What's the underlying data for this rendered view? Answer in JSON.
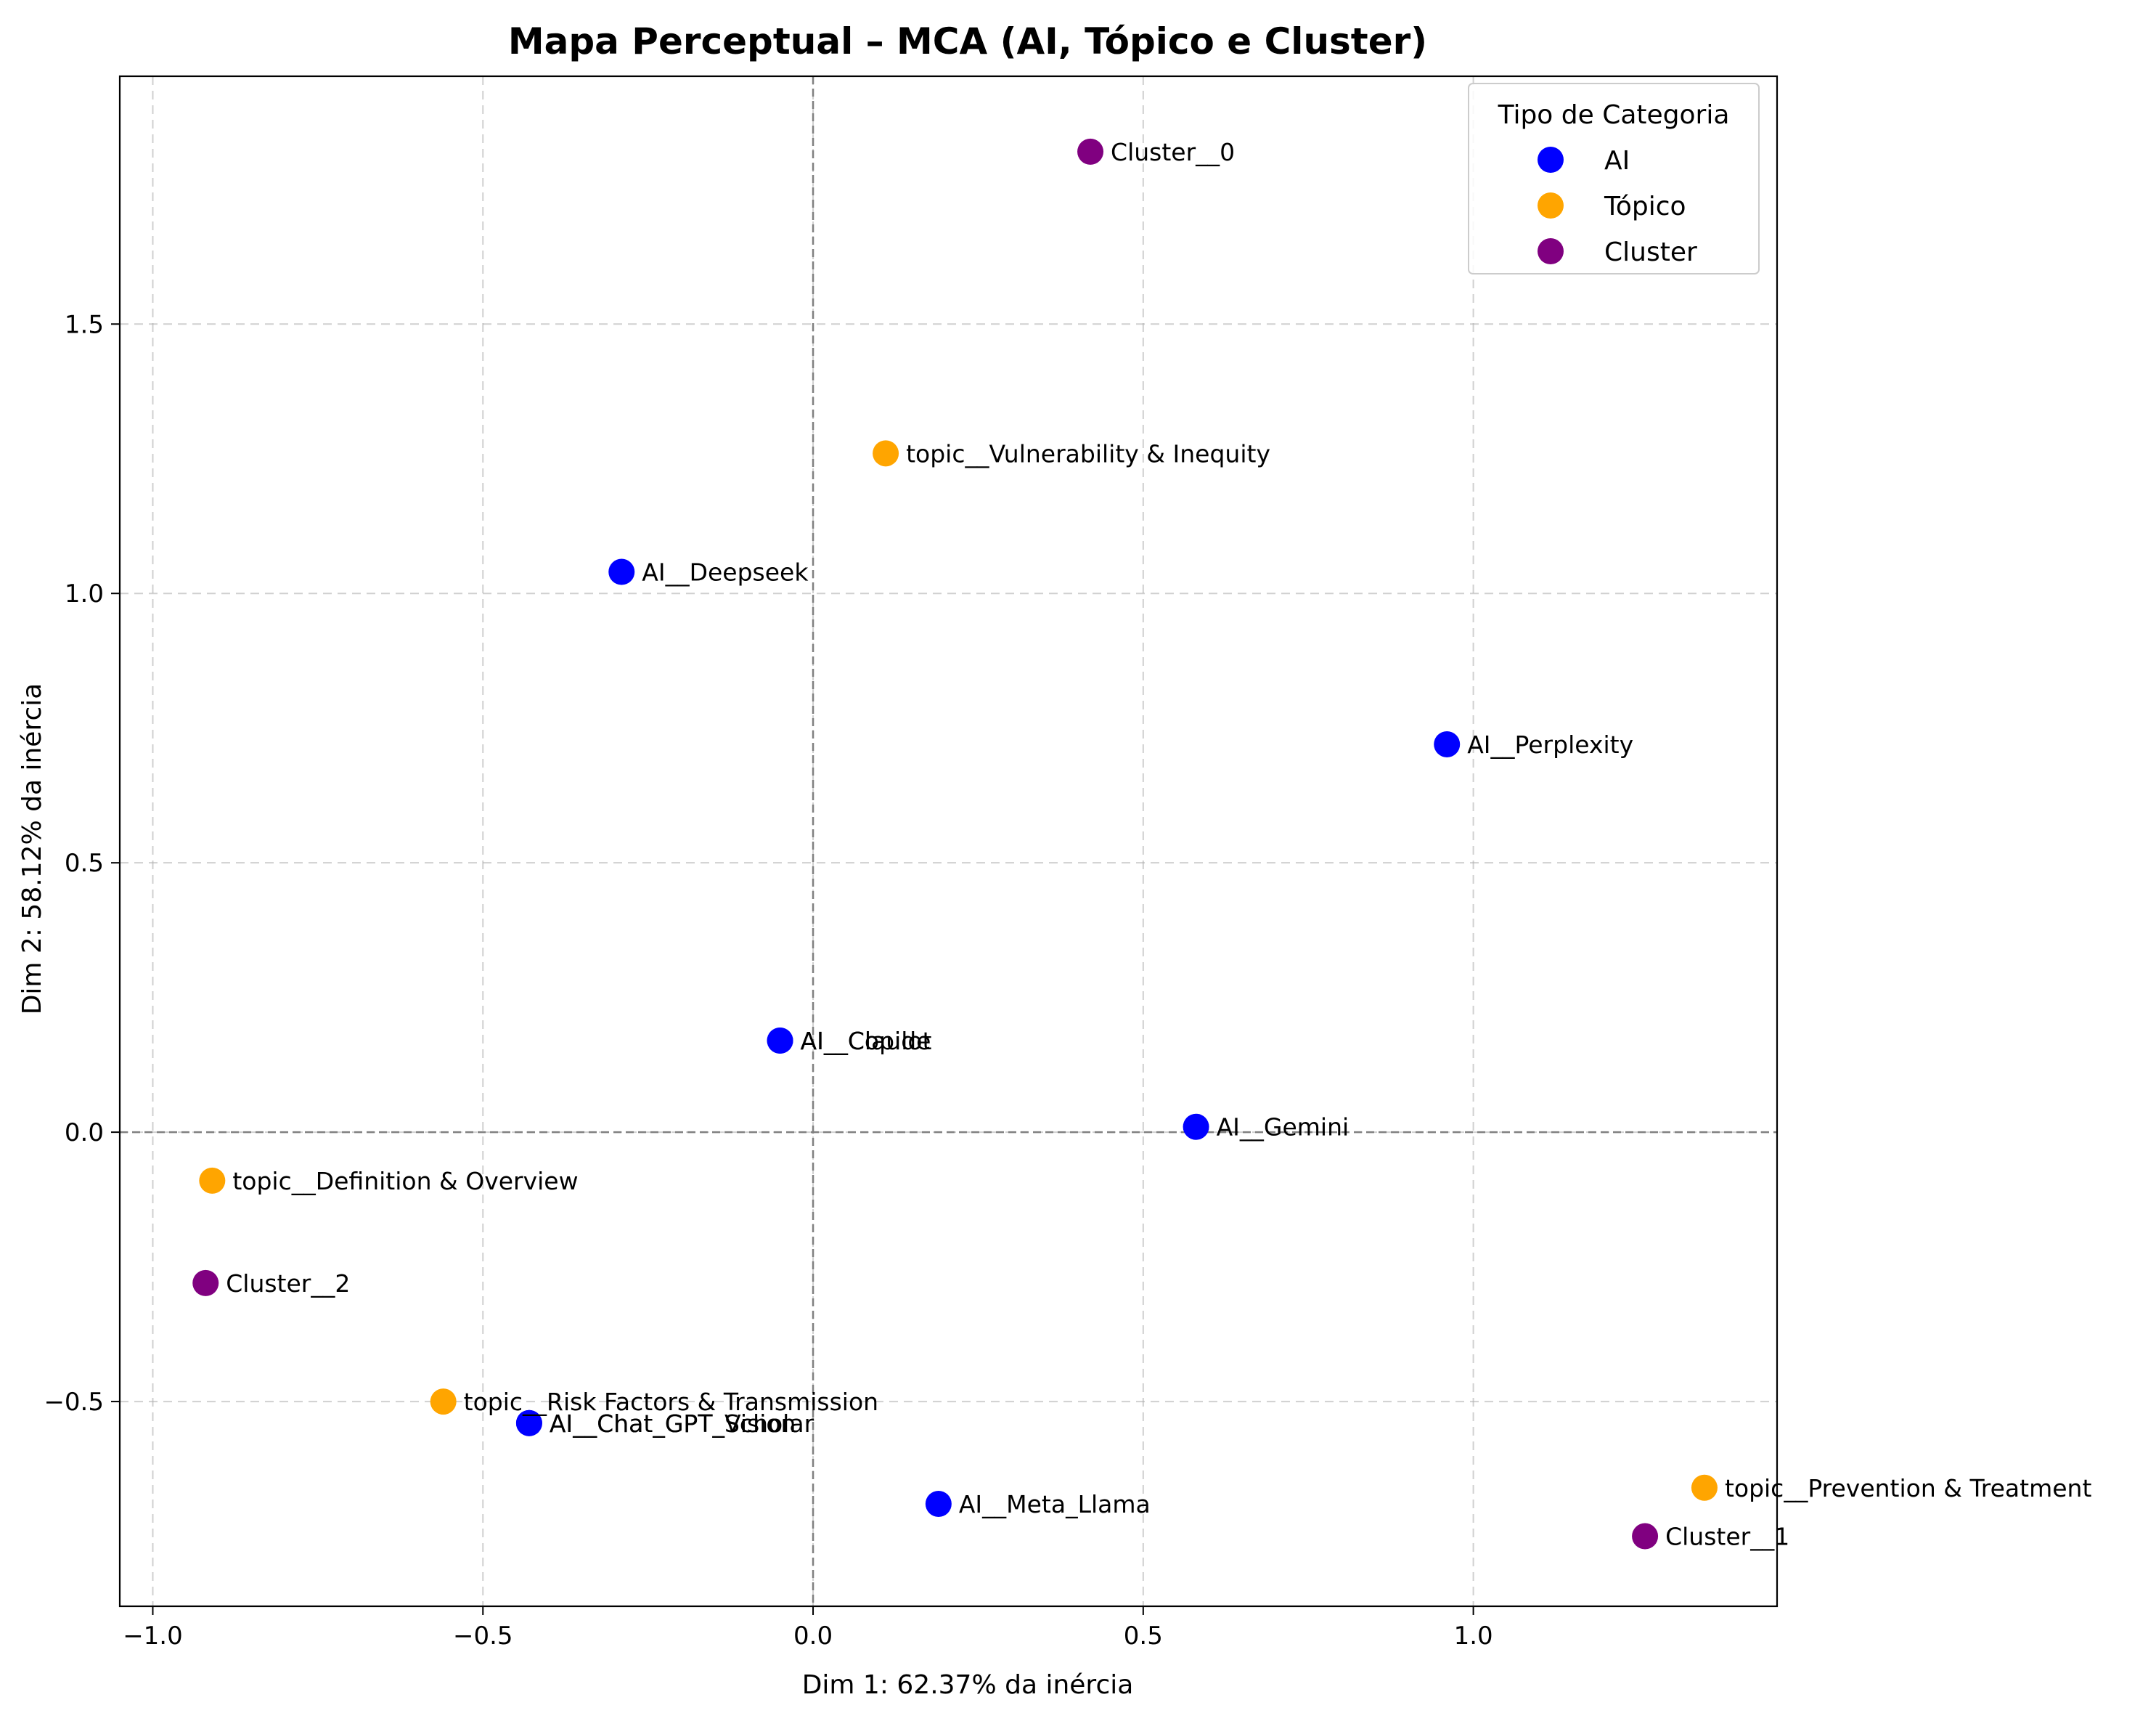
{
  "chart_data": {
    "type": "scatter",
    "title": "Mapa Perceptual – MCA (AI, Tópico e Cluster)",
    "xlabel": "Dim 1: 62.37% da inércia",
    "ylabel": "Dim 2: 58.12% da inércia",
    "xlim": [
      -1.05,
      1.46
    ],
    "ylim": [
      -0.88,
      1.96
    ],
    "xticks": [
      -1.0,
      -0.5,
      0.0,
      0.5,
      1.0
    ],
    "xtick_labels": [
      "−1.0",
      "−0.5",
      "0.0",
      "0.5",
      "1.0"
    ],
    "yticks": [
      -0.5,
      0.0,
      0.5,
      1.0,
      1.5
    ],
    "ytick_labels": [
      "−0.5",
      "0.0",
      "0.5",
      "1.0",
      "1.5"
    ],
    "grid": true,
    "reference_lines": {
      "x": 0,
      "y": 0
    },
    "legend": {
      "title": "Tipo de Categoria",
      "placement": "top-right",
      "entries": [
        {
          "name": "AI",
          "color": "#0000ff"
        },
        {
          "name": "Tópico",
          "color": "#ffa500"
        },
        {
          "name": "Cluster",
          "color": "#800080"
        }
      ]
    },
    "series": [
      {
        "name": "AI",
        "color": "#0000ff",
        "points": [
          {
            "label": "AI__Deepseek",
            "x": -0.29,
            "y": 1.04
          },
          {
            "label": "AI__Perplexity",
            "x": 0.96,
            "y": 0.72
          },
          {
            "label": "AI__Copilot",
            "x": -0.05,
            "y": 0.17
          },
          {
            "label": "AI__Claude",
            "x": -0.05,
            "y": 0.17
          },
          {
            "label": "AI__Gemini",
            "x": 0.58,
            "y": 0.01
          },
          {
            "label": "AI__Chat_GPT_Scholar",
            "x": -0.43,
            "y": -0.54
          },
          {
            "label": "AI__Chat_GPT_Vision",
            "x": -0.43,
            "y": -0.54
          },
          {
            "label": "AI__Meta_Llama",
            "x": 0.19,
            "y": -0.69
          }
        ]
      },
      {
        "name": "Tópico",
        "color": "#ffa500",
        "points": [
          {
            "label": "topic__Vulnerability & Inequity",
            "x": 0.11,
            "y": 1.26
          },
          {
            "label": "topic__Definition & Overview",
            "x": -0.91,
            "y": -0.09
          },
          {
            "label": "topic__Risk Factors & Transmission",
            "x": -0.56,
            "y": -0.5
          },
          {
            "label": "topic__Prevention & Treatment",
            "x": 1.35,
            "y": -0.66
          }
        ]
      },
      {
        "name": "Cluster",
        "color": "#800080",
        "points": [
          {
            "label": "Cluster__0",
            "x": 0.42,
            "y": 1.82
          },
          {
            "label": "Cluster__2",
            "x": -0.92,
            "y": -0.28
          },
          {
            "label": "Cluster__1",
            "x": 1.26,
            "y": -0.75
          }
        ]
      }
    ]
  }
}
